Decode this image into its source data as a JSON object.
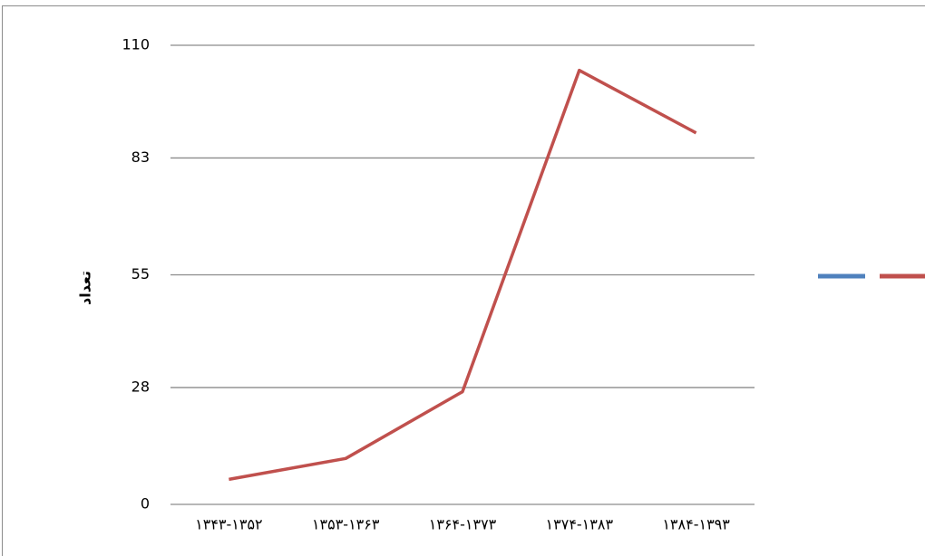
{
  "chart_data": {
    "type": "line",
    "y_label": "تعداد",
    "categories": [
      "۱۳۴۳-۱۳۵۲",
      "۱۳۵۳-۱۳۶۳",
      "۱۳۶۴-۱۳۷۳",
      "۱۳۷۴-۱۳۸۳",
      "۱۳۸۴-۱۳۹۳"
    ],
    "series": [
      {
        "color": "#4f81bd",
        "values": [
          null,
          null,
          null,
          null,
          null
        ]
      },
      {
        "color": "#c0504d",
        "values": [
          6,
          11,
          27,
          104,
          89
        ]
      }
    ],
    "ylim": [
      0,
      110
    ],
    "yticks": [
      0,
      28,
      55,
      83,
      110
    ],
    "grid": true,
    "legend": "right"
  }
}
